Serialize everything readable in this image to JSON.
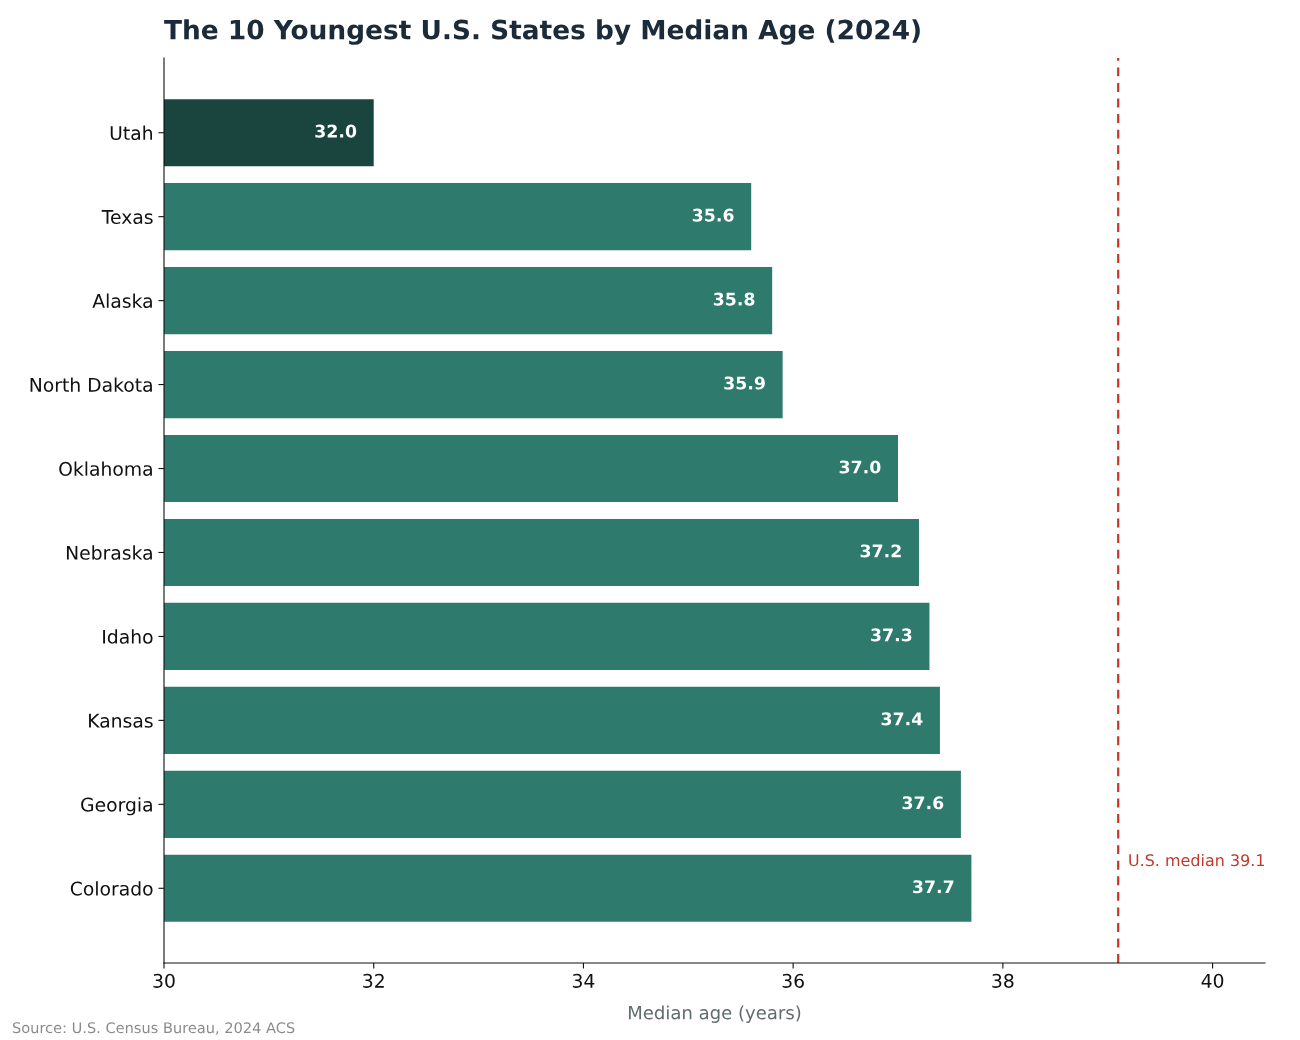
{
  "chart_data": {
    "type": "bar",
    "orientation": "horizontal",
    "title": "The 10 Youngest U.S. States by Median Age (2024)",
    "xlabel": "Median age (years)",
    "categories": [
      "Utah",
      "Texas",
      "Alaska",
      "North Dakota",
      "Oklahoma",
      "Nebraska",
      "Idaho",
      "Kansas",
      "Georgia",
      "Colorado"
    ],
    "values": [
      32.0,
      35.6,
      35.8,
      35.9,
      37.0,
      37.2,
      37.3,
      37.4,
      37.6,
      37.7
    ],
    "colors": [
      "#1a453f",
      "#2e7b6e",
      "#2e7b6e",
      "#2e7b6e",
      "#2e7b6e",
      "#2e7b6e",
      "#2e7b6e",
      "#2e7b6e",
      "#2e7b6e",
      "#2e7b6e"
    ],
    "value_labels": [
      "32.0",
      "35.6",
      "35.8",
      "35.9",
      "37.0",
      "37.2",
      "37.3",
      "37.4",
      "37.6",
      "37.7"
    ],
    "xlim": [
      30,
      40.5
    ],
    "xticks": [
      30,
      32,
      34,
      36,
      38,
      40
    ],
    "ref_lines": [
      {
        "axis": "x",
        "value": 39.1,
        "label": "U.S. median 39.1",
        "color": "#c0392b",
        "line_style": "dashed"
      }
    ],
    "annotations": [
      "Source: U.S. Census Bureau, 2024 ACS"
    ],
    "grid": false,
    "legend": false
  }
}
